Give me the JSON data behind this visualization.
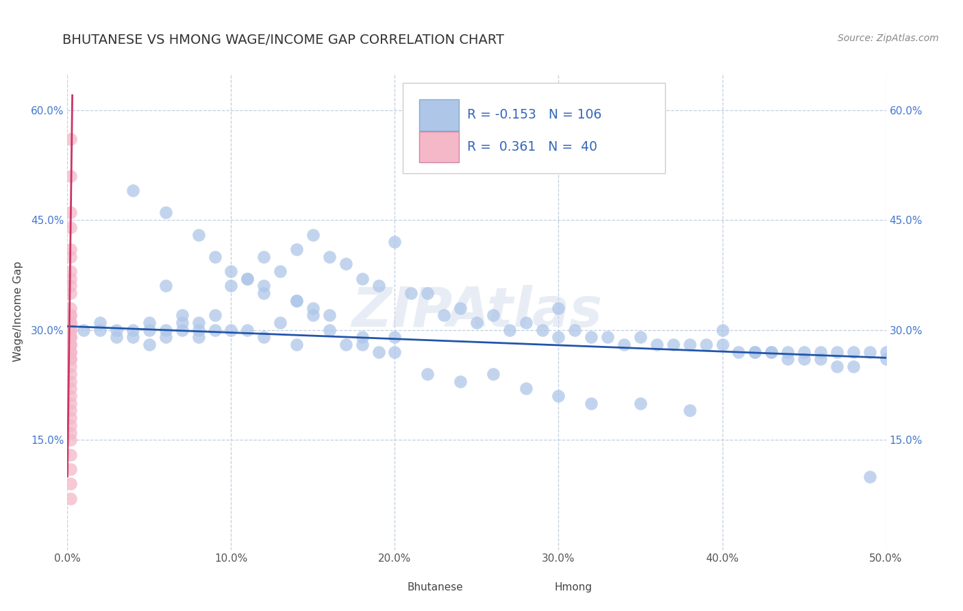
{
  "title": "BHUTANESE VS HMONG WAGE/INCOME GAP CORRELATION CHART",
  "source": "Source: ZipAtlas.com",
  "ylabel": "Wage/Income Gap",
  "xlim": [
    0.0,
    0.5
  ],
  "ylim": [
    0.0,
    0.65
  ],
  "xticks": [
    0.0,
    0.1,
    0.2,
    0.3,
    0.4,
    0.5
  ],
  "xticklabels": [
    "0.0%",
    "10.0%",
    "20.0%",
    "30.0%",
    "40.0%",
    "50.0%"
  ],
  "yticks": [
    0.15,
    0.3,
    0.45,
    0.6
  ],
  "yticklabels": [
    "15.0%",
    "30.0%",
    "45.0%",
    "60.0%"
  ],
  "legend_r_blue": "-0.153",
  "legend_n_blue": "106",
  "legend_r_pink": "0.361",
  "legend_n_pink": "40",
  "blue_color": "#aec6e8",
  "pink_color": "#f4b8c8",
  "blue_line_color": "#2255aa",
  "pink_line_color": "#cc3366",
  "watermark": "ZIPAtlas",
  "title_color": "#333333",
  "title_fontsize": 14,
  "blue_scatter_x": [
    0.01,
    0.02,
    0.02,
    0.03,
    0.03,
    0.04,
    0.04,
    0.05,
    0.05,
    0.05,
    0.06,
    0.06,
    0.06,
    0.07,
    0.07,
    0.07,
    0.08,
    0.08,
    0.08,
    0.09,
    0.09,
    0.1,
    0.1,
    0.11,
    0.11,
    0.12,
    0.12,
    0.12,
    0.13,
    0.13,
    0.14,
    0.14,
    0.14,
    0.15,
    0.15,
    0.16,
    0.16,
    0.17,
    0.17,
    0.18,
    0.18,
    0.19,
    0.19,
    0.2,
    0.2,
    0.21,
    0.22,
    0.23,
    0.24,
    0.25,
    0.26,
    0.27,
    0.28,
    0.29,
    0.3,
    0.3,
    0.31,
    0.32,
    0.33,
    0.34,
    0.35,
    0.36,
    0.37,
    0.38,
    0.39,
    0.4,
    0.41,
    0.42,
    0.43,
    0.44,
    0.45,
    0.46,
    0.47,
    0.48,
    0.49,
    0.5,
    0.04,
    0.06,
    0.08,
    0.09,
    0.1,
    0.11,
    0.12,
    0.14,
    0.15,
    0.16,
    0.18,
    0.2,
    0.22,
    0.24,
    0.26,
    0.28,
    0.3,
    0.32,
    0.35,
    0.38,
    0.4,
    0.42,
    0.43,
    0.44,
    0.45,
    0.46,
    0.47,
    0.48,
    0.49,
    0.5
  ],
  "blue_scatter_y": [
    0.3,
    0.31,
    0.3,
    0.29,
    0.3,
    0.29,
    0.3,
    0.31,
    0.3,
    0.28,
    0.36,
    0.3,
    0.29,
    0.31,
    0.32,
    0.3,
    0.3,
    0.31,
    0.29,
    0.32,
    0.3,
    0.36,
    0.3,
    0.37,
    0.3,
    0.4,
    0.35,
    0.29,
    0.38,
    0.31,
    0.41,
    0.34,
    0.28,
    0.43,
    0.32,
    0.4,
    0.3,
    0.39,
    0.28,
    0.37,
    0.28,
    0.36,
    0.27,
    0.42,
    0.29,
    0.35,
    0.35,
    0.32,
    0.33,
    0.31,
    0.32,
    0.3,
    0.31,
    0.3,
    0.33,
    0.29,
    0.3,
    0.29,
    0.29,
    0.28,
    0.29,
    0.28,
    0.28,
    0.28,
    0.28,
    0.28,
    0.27,
    0.27,
    0.27,
    0.27,
    0.27,
    0.27,
    0.27,
    0.27,
    0.27,
    0.26,
    0.49,
    0.46,
    0.43,
    0.4,
    0.38,
    0.37,
    0.36,
    0.34,
    0.33,
    0.32,
    0.29,
    0.27,
    0.24,
    0.23,
    0.24,
    0.22,
    0.21,
    0.2,
    0.2,
    0.19,
    0.3,
    0.27,
    0.27,
    0.26,
    0.26,
    0.26,
    0.25,
    0.25,
    0.1,
    0.27
  ],
  "pink_scatter_x": [
    0.002,
    0.002,
    0.002,
    0.002,
    0.002,
    0.002,
    0.002,
    0.002,
    0.002,
    0.002,
    0.002,
    0.002,
    0.002,
    0.002,
    0.002,
    0.002,
    0.002,
    0.002,
    0.002,
    0.002,
    0.002,
    0.002,
    0.002,
    0.002,
    0.002,
    0.002,
    0.002,
    0.002,
    0.002,
    0.002,
    0.002,
    0.002,
    0.002,
    0.002,
    0.002,
    0.002,
    0.002,
    0.002,
    0.002,
    0.002
  ],
  "pink_scatter_y": [
    0.56,
    0.51,
    0.46,
    0.44,
    0.41,
    0.4,
    0.38,
    0.37,
    0.36,
    0.35,
    0.33,
    0.32,
    0.32,
    0.31,
    0.31,
    0.3,
    0.3,
    0.29,
    0.29,
    0.28,
    0.28,
    0.27,
    0.27,
    0.26,
    0.26,
    0.25,
    0.24,
    0.23,
    0.22,
    0.21,
    0.2,
    0.19,
    0.18,
    0.17,
    0.16,
    0.15,
    0.13,
    0.11,
    0.09,
    0.07
  ],
  "blue_trend_x": [
    0.0,
    0.5
  ],
  "blue_trend_y": [
    0.305,
    0.262
  ],
  "pink_trend_x": [
    0.0,
    0.003
  ],
  "pink_trend_y": [
    0.1,
    0.62
  ]
}
